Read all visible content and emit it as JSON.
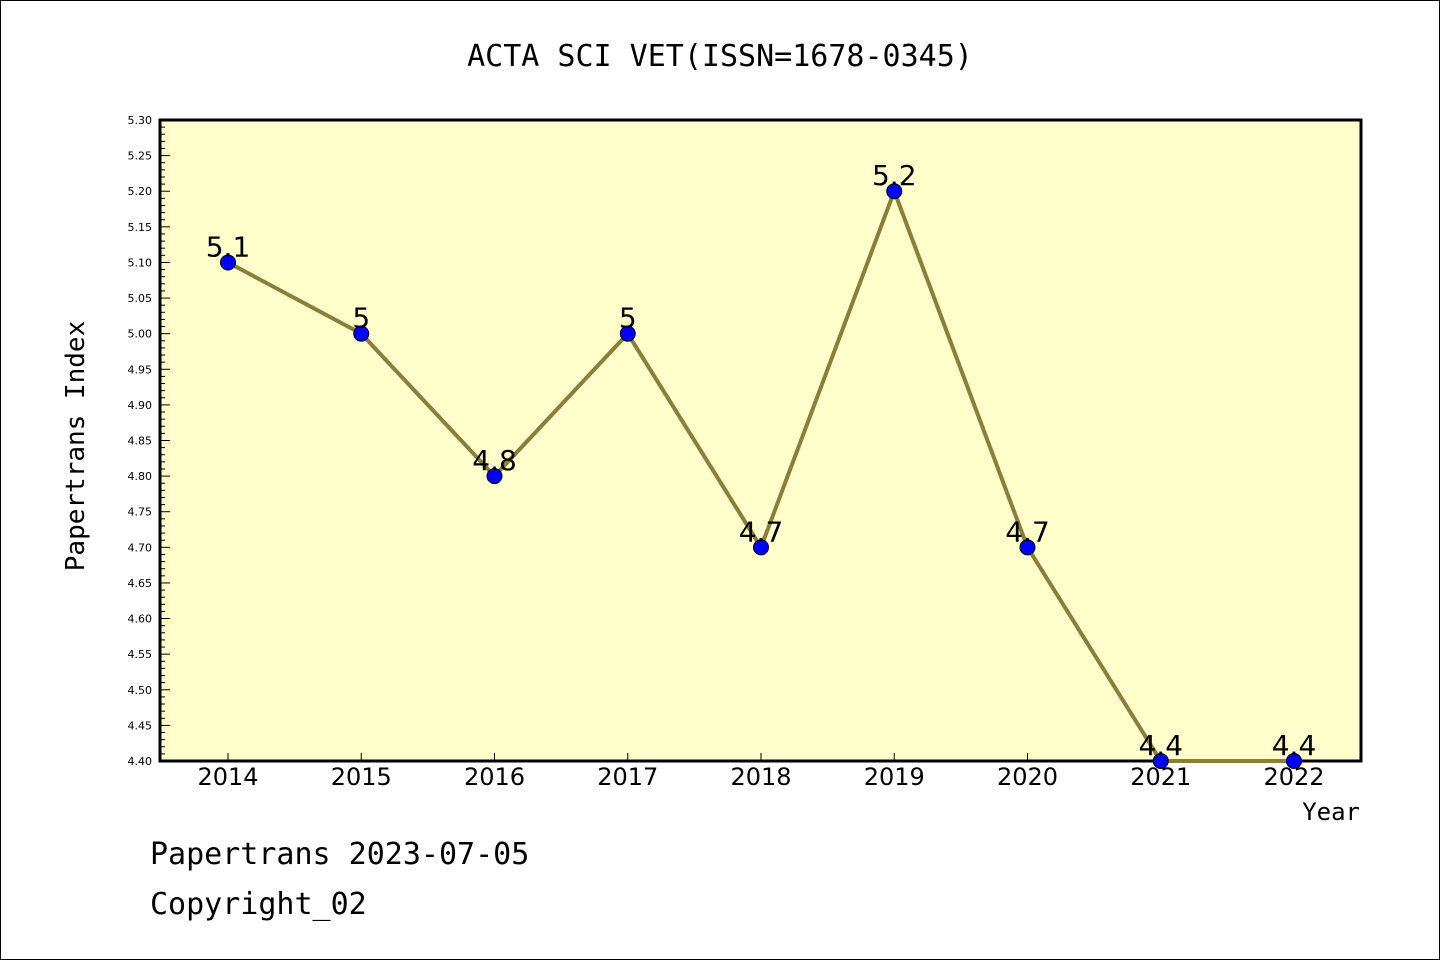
{
  "chart_data": {
    "type": "line",
    "title": "ACTA SCI VET(ISSN=1678-0345)",
    "xlabel": "Year",
    "ylabel": "Papertrans Index",
    "categories": [
      "2014",
      "2015",
      "2016",
      "2017",
      "2018",
      "2019",
      "2020",
      "2021",
      "2022"
    ],
    "values": [
      5.1,
      5.0,
      4.8,
      5.0,
      4.7,
      5.2,
      4.7,
      4.4,
      4.4
    ],
    "data_labels": [
      "5.1",
      "5",
      "4.8",
      "5",
      "4.7",
      "5.2",
      "4.7",
      "4.4",
      "4.4"
    ],
    "ylim": [
      4.4,
      5.3
    ],
    "yticks": [
      "4.40",
      "4.45",
      "4.50",
      "4.55",
      "4.60",
      "4.65",
      "4.70",
      "4.75",
      "4.80",
      "4.85",
      "4.90",
      "4.95",
      "5.00",
      "5.05",
      "5.10",
      "5.15",
      "5.20",
      "5.25",
      "5.30"
    ],
    "grid": false,
    "colors": {
      "plot_background": "#ffffcc",
      "line": "#8b7d3a",
      "marker": "#0000ff"
    }
  },
  "footer": {
    "date_text": "Papertrans 2023-07-05",
    "copyright_text": "Copyright_02"
  }
}
